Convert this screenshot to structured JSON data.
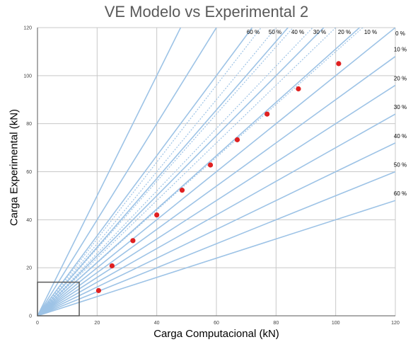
{
  "chart_data": {
    "type": "scatter",
    "title": "VE Modelo vs Experimental 2",
    "xlabel": "Carga Computacional (kN)",
    "ylabel": "Carga Experimental (kN)",
    "xlim": [
      0,
      120
    ],
    "ylim": [
      0,
      120
    ],
    "xticks": [
      "0",
      "20",
      "40",
      "60",
      "80",
      "100",
      "120"
    ],
    "yticks": [
      "0",
      "20",
      "40",
      "60",
      "80",
      "100",
      "120"
    ],
    "grid": true,
    "series": [
      {
        "color": "#e02020",
        "x": [
          20.5,
          25,
          32,
          40,
          48.5,
          58,
          67,
          77,
          87.5,
          101
        ],
        "y": [
          10.5,
          20.8,
          31.3,
          42,
          52.3,
          62.8,
          73.3,
          84,
          94.5,
          105
        ]
      }
    ],
    "deviation_lines": {
      "color": "#9dc3e6",
      "above": [
        {
          "label": "10 %",
          "pct": 10
        },
        {
          "label": "20 %",
          "pct": 20
        },
        {
          "label": "30 %",
          "pct": 30
        },
        {
          "label": "40 %",
          "pct": 40
        },
        {
          "label": "50 %",
          "pct": 50
        },
        {
          "label": "60 %",
          "pct": 60
        }
      ],
      "reference": {
        "label": "0 %",
        "pct": 0
      },
      "below": [
        {
          "label": "10 %",
          "pct": 10
        },
        {
          "label": "20 %",
          "pct": 20
        },
        {
          "label": "30 %",
          "pct": 30
        },
        {
          "label": "40 %",
          "pct": 40
        },
        {
          "label": "50 %",
          "pct": 50
        },
        {
          "label": "60 %",
          "pct": 60
        }
      ]
    },
    "inset_box": {
      "x": [
        0,
        14
      ],
      "y": [
        0,
        14
      ],
      "color": "#595959"
    }
  }
}
